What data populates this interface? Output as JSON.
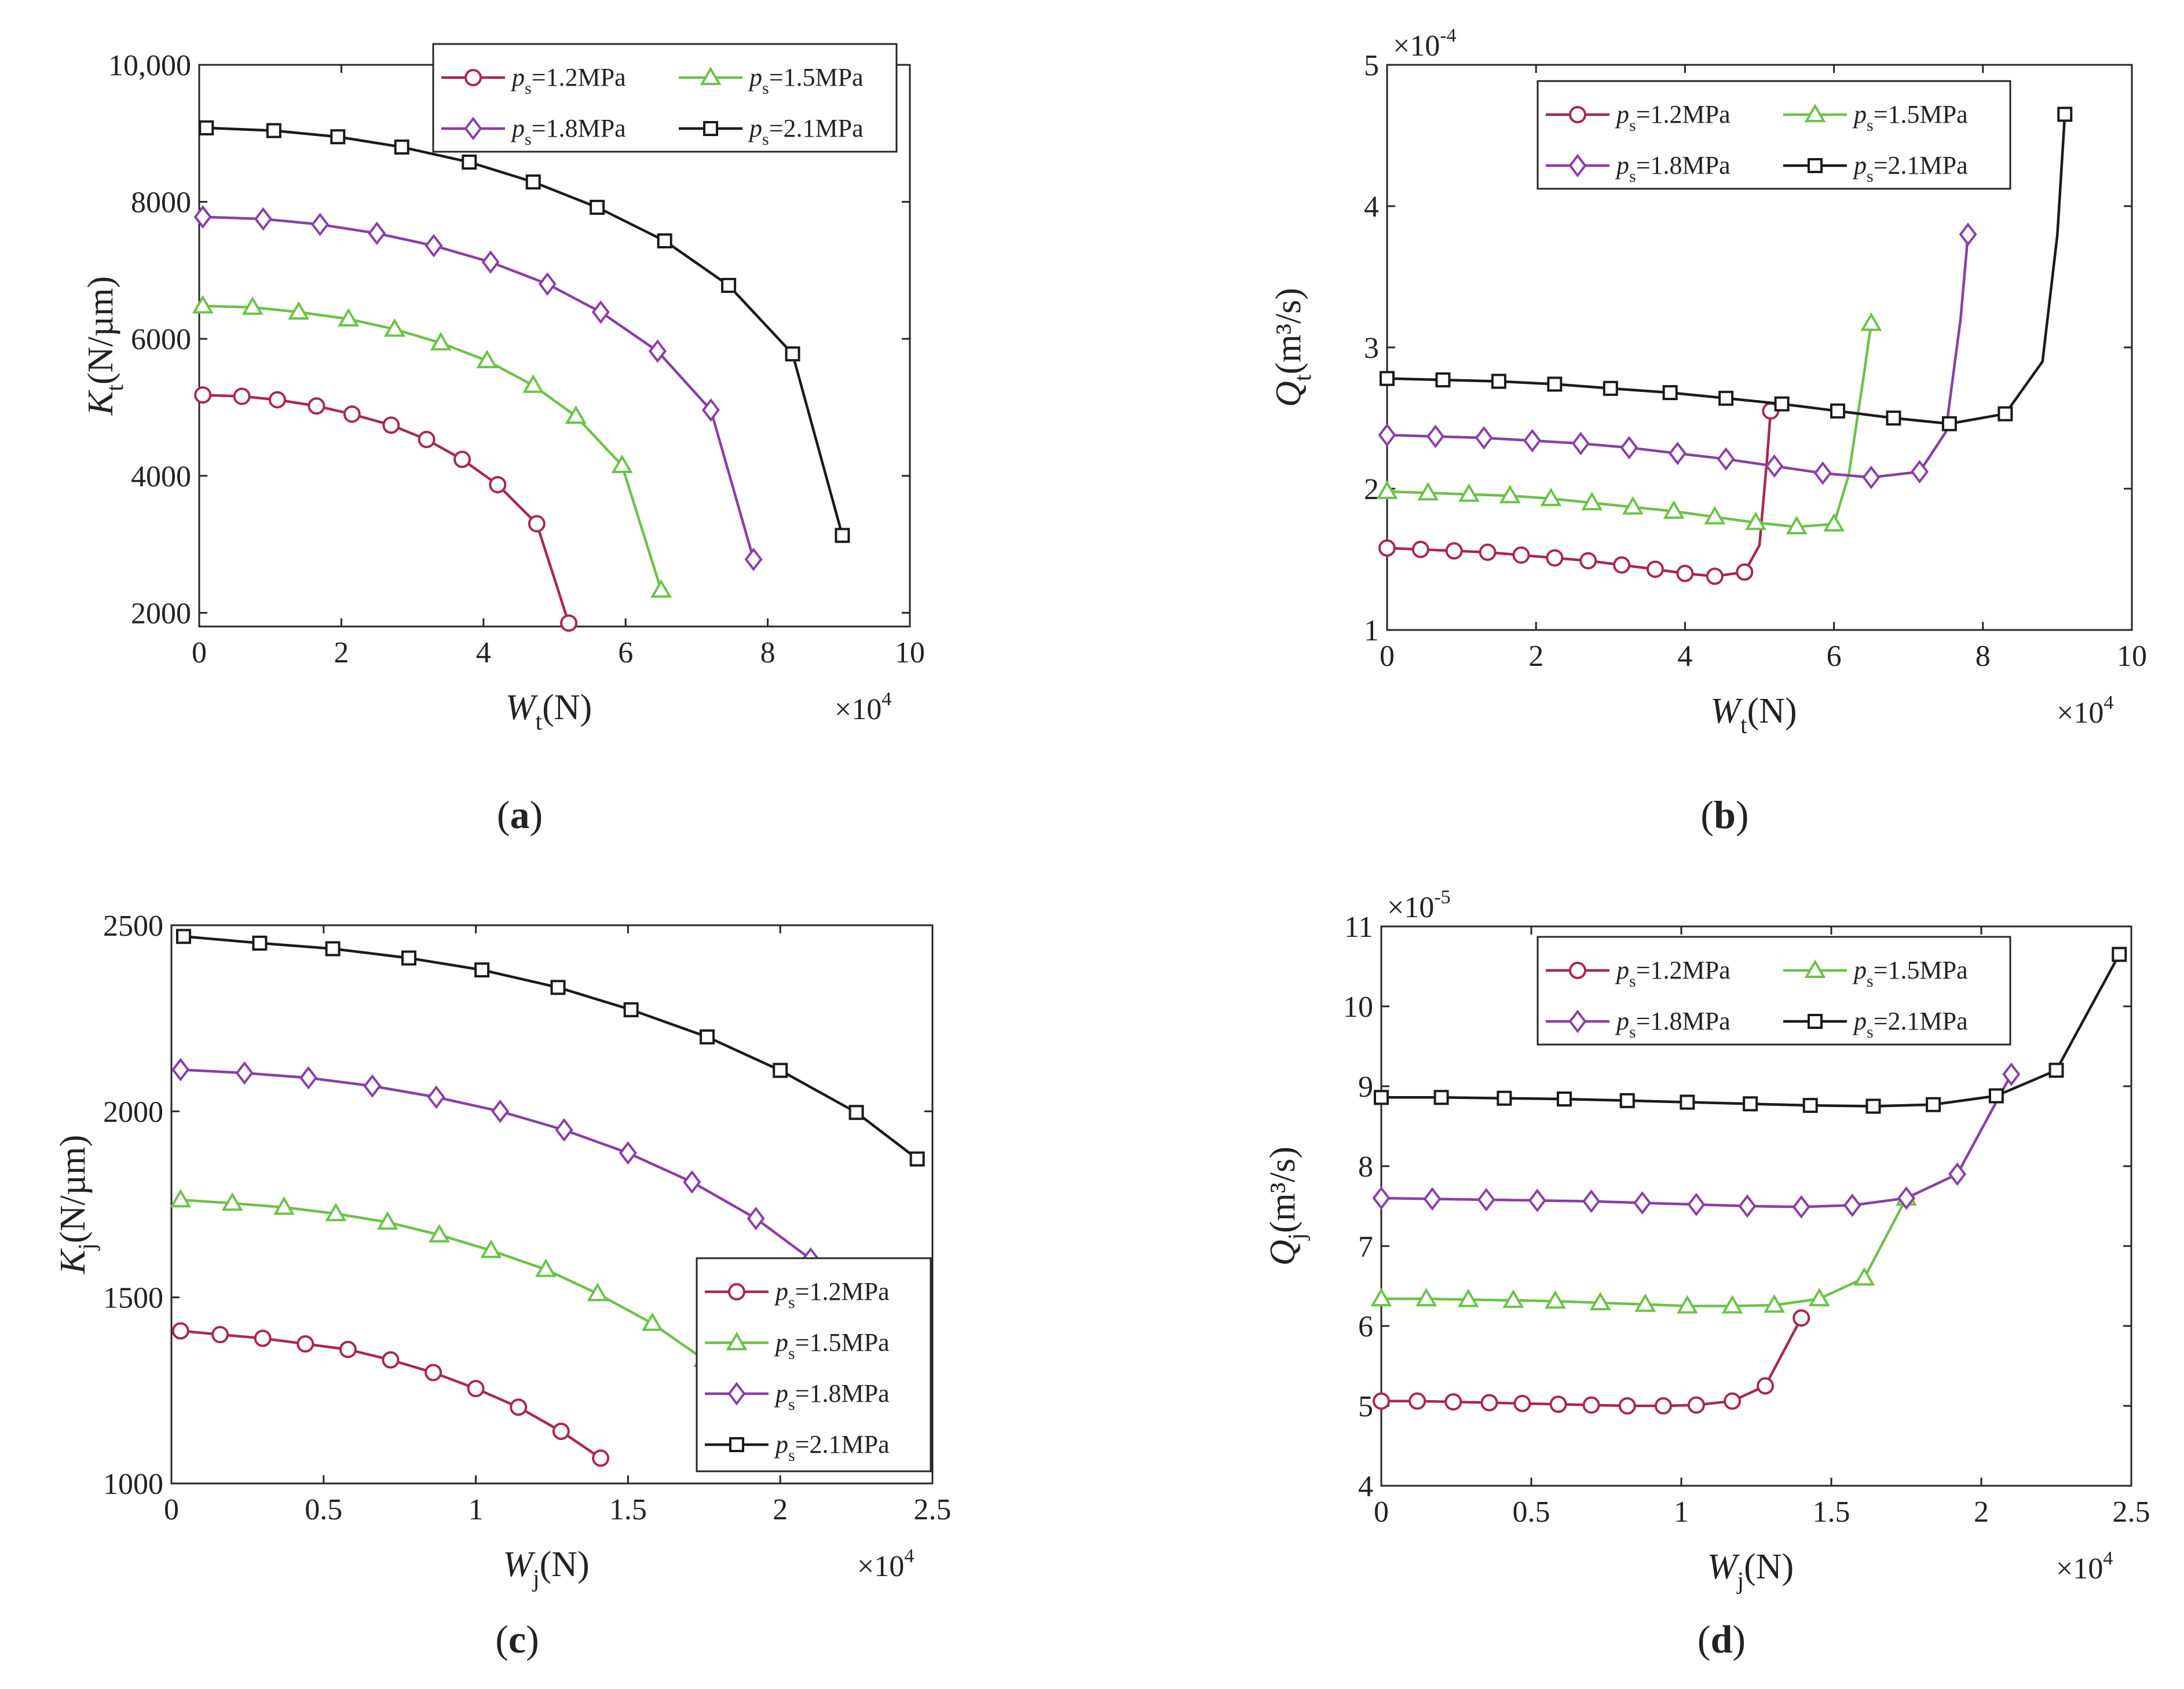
{
  "figure": {
    "series_colors": {
      "1.2": "#a8294a",
      "1.5": "#6cc24a",
      "1.8": "#8a3ea7",
      "2.1": "#1a1a1a"
    },
    "marker_shapes": {
      "1.2": "circle",
      "1.5": "triangle",
      "1.8": "diamond",
      "2.1": "square"
    }
  },
  "chart_data": [
    {
      "id": "a",
      "panel_label": "a",
      "type": "line",
      "xlabel_main": "W",
      "xlabel_sub": "t",
      "xlabel_unit": "(N)",
      "ylabel_main": "K",
      "ylabel_sub": "t",
      "ylabel_unit": "(N/µm)",
      "xlim": [
        0,
        10
      ],
      "ylim": [
        1800,
        10000
      ],
      "xticks": [
        0,
        2,
        4,
        6,
        8,
        10
      ],
      "yticks": [
        2000,
        4000,
        6000,
        8000,
        10000
      ],
      "ytick_labels": [
        "2000",
        "4000",
        "6000",
        "8000",
        "10,000"
      ],
      "x_multiplier": {
        "base": "×10",
        "exp": "4"
      },
      "legend": {
        "placement": "top-right",
        "columns": 2
      },
      "series": [
        {
          "name": "ps=1.2MPa",
          "p_label": "p",
          "p_sub": "s",
          "p_val": "=1.2MPa",
          "key": "1.2",
          "x": [
            0.05,
            0.6,
            1.1,
            1.65,
            2.15,
            2.7,
            3.2,
            3.7,
            4.2,
            4.75,
            5.2
          ],
          "y": [
            5180,
            5160,
            5110,
            5020,
            4900,
            4740,
            4530,
            4240,
            3870,
            3300,
            1850
          ]
        },
        {
          "name": "ps=1.5MPa",
          "p_label": "p",
          "p_sub": "s",
          "p_val": "=1.5MPa",
          "key": "1.5",
          "x": [
            0.05,
            0.75,
            1.4,
            2.1,
            2.75,
            3.4,
            4.05,
            4.7,
            5.3,
            5.95,
            6.5
          ],
          "y": [
            6480,
            6460,
            6390,
            6290,
            6140,
            5940,
            5680,
            5320,
            4870,
            4150,
            2330
          ]
        },
        {
          "name": "ps=1.8MPa",
          "p_label": "p",
          "p_sub": "s",
          "p_val": "=1.8MPa",
          "key": "1.8",
          "x": [
            0.05,
            0.9,
            1.7,
            2.5,
            3.3,
            4.1,
            4.9,
            5.65,
            6.45,
            7.2,
            7.8
          ],
          "y": [
            7780,
            7750,
            7670,
            7540,
            7360,
            7120,
            6800,
            6390,
            5820,
            4960,
            2780
          ]
        },
        {
          "name": "ps=2.1MPa",
          "p_label": "p",
          "p_sub": "s",
          "p_val": "=2.1MPa",
          "key": "2.1",
          "x": [
            0.1,
            1.05,
            1.95,
            2.85,
            3.8,
            4.7,
            5.6,
            6.55,
            7.45,
            8.35,
            9.05
          ],
          "y": [
            9080,
            9040,
            8950,
            8800,
            8580,
            8290,
            7920,
            7430,
            6780,
            5780,
            3130
          ]
        }
      ]
    },
    {
      "id": "b",
      "panel_label": "b",
      "type": "line",
      "xlabel_main": "W",
      "xlabel_sub": "t",
      "xlabel_unit": "(N)",
      "ylabel_main": "Q",
      "ylabel_sub": "t",
      "ylabel_unit": "(m³/s)",
      "xlim": [
        0,
        10
      ],
      "ylim": [
        1,
        5
      ],
      "xticks": [
        0,
        2,
        4,
        6,
        8,
        10
      ],
      "yticks": [
        1,
        2,
        3,
        4,
        5
      ],
      "ytick_labels": [
        "1",
        "2",
        "3",
        "4",
        "5"
      ],
      "x_multiplier": {
        "base": "×10",
        "exp": "4"
      },
      "y_multiplier": {
        "base": "×10",
        "exp": "-4"
      },
      "legend": {
        "placement": "top-right",
        "columns": 2
      },
      "series": [
        {
          "name": "ps=1.2MPa",
          "p_label": "p",
          "p_sub": "s",
          "p_val": "=1.2MPa",
          "key": "1.2",
          "x": [
            0,
            0.45,
            0.9,
            1.35,
            1.8,
            2.25,
            2.7,
            3.15,
            3.6,
            4.0,
            4.4,
            4.8,
            5.0,
            5.1,
            5.15
          ],
          "y": [
            1.58,
            1.57,
            1.56,
            1.55,
            1.53,
            1.51,
            1.49,
            1.46,
            1.43,
            1.4,
            1.38,
            1.41,
            1.6,
            2.2,
            2.55
          ],
          "marker_idx": [
            0,
            1,
            2,
            3,
            4,
            5,
            6,
            7,
            8,
            9,
            10,
            11,
            14
          ]
        },
        {
          "name": "ps=1.5MPa",
          "p_label": "p",
          "p_sub": "s",
          "p_val": "=1.5MPa",
          "key": "1.5",
          "x": [
            0,
            0.55,
            1.1,
            1.65,
            2.2,
            2.75,
            3.3,
            3.85,
            4.4,
            4.95,
            5.5,
            6.0,
            6.2,
            6.4,
            6.5
          ],
          "y": [
            1.98,
            1.97,
            1.96,
            1.95,
            1.93,
            1.9,
            1.87,
            1.84,
            1.8,
            1.76,
            1.73,
            1.75,
            2.1,
            2.8,
            3.17
          ],
          "marker_idx": [
            0,
            1,
            2,
            3,
            4,
            5,
            6,
            7,
            8,
            9,
            10,
            11,
            14
          ]
        },
        {
          "name": "ps=1.8MPa",
          "p_label": "p",
          "p_sub": "s",
          "p_val": "=1.8MPa",
          "key": "1.8",
          "x": [
            0,
            0.65,
            1.3,
            1.95,
            2.6,
            3.25,
            3.9,
            4.55,
            5.2,
            5.85,
            6.5,
            7.15,
            7.5,
            7.7,
            7.8
          ],
          "y": [
            2.38,
            2.37,
            2.36,
            2.34,
            2.32,
            2.29,
            2.25,
            2.21,
            2.16,
            2.11,
            2.08,
            2.12,
            2.4,
            3.2,
            3.8
          ],
          "marker_idx": [
            0,
            1,
            2,
            3,
            4,
            5,
            6,
            7,
            8,
            9,
            10,
            11,
            14
          ]
        },
        {
          "name": "ps=2.1MPa",
          "p_label": "p",
          "p_sub": "s",
          "p_val": "=2.1MPa",
          "key": "2.1",
          "x": [
            0,
            0.75,
            1.5,
            2.25,
            3.0,
            3.8,
            4.55,
            5.3,
            6.05,
            6.8,
            7.55,
            8.3,
            8.8,
            9.0,
            9.1
          ],
          "y": [
            2.78,
            2.77,
            2.76,
            2.74,
            2.71,
            2.68,
            2.64,
            2.6,
            2.55,
            2.5,
            2.46,
            2.53,
            2.9,
            3.8,
            4.65
          ],
          "marker_idx": [
            0,
            1,
            2,
            3,
            4,
            5,
            6,
            7,
            8,
            9,
            10,
            11,
            14
          ]
        }
      ]
    },
    {
      "id": "c",
      "panel_label": "c",
      "type": "line",
      "xlabel_main": "W",
      "xlabel_sub": "j",
      "xlabel_unit": "(N)",
      "ylabel_main": "K",
      "ylabel_sub": "j",
      "ylabel_unit": "(N/µm)",
      "xlim": [
        0,
        2.5
      ],
      "ylim": [
        1000,
        2500
      ],
      "xticks": [
        0,
        0.5,
        1,
        1.5,
        2,
        2.5
      ],
      "yticks": [
        1000,
        1500,
        2000,
        2500
      ],
      "ytick_labels": [
        "1000",
        "1500",
        "2000",
        "2500"
      ],
      "x_multiplier": {
        "base": "×10",
        "exp": "4"
      },
      "legend": {
        "placement": "bottom-right",
        "columns": 1
      },
      "series": [
        {
          "name": "ps=1.2MPa",
          "p_label": "p",
          "p_sub": "s",
          "p_val": "=1.2MPa",
          "key": "1.2",
          "x": [
            0.03,
            0.16,
            0.3,
            0.44,
            0.58,
            0.72,
            0.86,
            1.0,
            1.14,
            1.28,
            1.41
          ],
          "y": [
            1410,
            1400,
            1390,
            1375,
            1360,
            1332,
            1298,
            1255,
            1205,
            1140,
            1068
          ]
        },
        {
          "name": "ps=1.5MPa",
          "p_label": "p",
          "p_sub": "s",
          "p_val": "=1.5MPa",
          "key": "1.5",
          "x": [
            0.03,
            0.2,
            0.37,
            0.54,
            0.71,
            0.88,
            1.05,
            1.23,
            1.4,
            1.58,
            1.75
          ],
          "y": [
            1762,
            1753,
            1742,
            1725,
            1702,
            1668,
            1626,
            1575,
            1510,
            1430,
            1333
          ]
        },
        {
          "name": "ps=1.8MPa",
          "p_label": "p",
          "p_sub": "s",
          "p_val": "=1.8MPa",
          "key": "1.8",
          "x": [
            0.03,
            0.24,
            0.45,
            0.66,
            0.87,
            1.08,
            1.29,
            1.5,
            1.71,
            1.92,
            2.1
          ],
          "y": [
            2112,
            2103,
            2090,
            2068,
            2038,
            2000,
            1950,
            1888,
            1810,
            1712,
            1603
          ]
        },
        {
          "name": "ps=2.1MPa",
          "p_label": "p",
          "p_sub": "s",
          "p_val": "=2.1MPa",
          "key": "2.1",
          "x": [
            0.04,
            0.29,
            0.53,
            0.78,
            1.02,
            1.27,
            1.51,
            1.76,
            2.0,
            2.25,
            2.45
          ],
          "y": [
            2470,
            2452,
            2437,
            2412,
            2380,
            2333,
            2273,
            2200,
            2110,
            1997,
            1872
          ]
        }
      ]
    },
    {
      "id": "d",
      "panel_label": "d",
      "type": "line",
      "xlabel_main": "W",
      "xlabel_sub": "j",
      "xlabel_unit": "(N)",
      "ylabel_main": "Q",
      "ylabel_sub": "j",
      "ylabel_unit": "(m³/s)",
      "xlim": [
        0,
        2.5
      ],
      "ylim": [
        4,
        11
      ],
      "xticks": [
        0,
        0.5,
        1,
        1.5,
        2,
        2.5
      ],
      "yticks": [
        4,
        5,
        6,
        7,
        8,
        9,
        10,
        11
      ],
      "ytick_labels": [
        "4",
        "5",
        "6",
        "7",
        "8",
        "9",
        "10",
        "11"
      ],
      "x_multiplier": {
        "base": "×10",
        "exp": "4"
      },
      "y_multiplier": {
        "base": "×10",
        "exp": "-5"
      },
      "legend": {
        "placement": "top-right",
        "columns": 2
      },
      "series": [
        {
          "name": "ps=1.2MPa",
          "p_label": "p",
          "p_sub": "s",
          "p_val": "=1.2MPa",
          "key": "1.2",
          "x": [
            0,
            0.12,
            0.24,
            0.36,
            0.47,
            0.59,
            0.7,
            0.82,
            0.94,
            1.05,
            1.17,
            1.28,
            1.4
          ],
          "y": [
            5.06,
            5.06,
            5.05,
            5.04,
            5.03,
            5.02,
            5.01,
            5.0,
            5.0,
            5.01,
            5.06,
            5.25,
            6.1
          ]
        },
        {
          "name": "ps=1.5MPa",
          "p_label": "p",
          "p_sub": "s",
          "p_val": "=1.5MPa",
          "key": "1.5",
          "x": [
            0,
            0.15,
            0.29,
            0.44,
            0.58,
            0.73,
            0.88,
            1.02,
            1.17,
            1.31,
            1.46,
            1.61,
            1.75
          ],
          "y": [
            6.34,
            6.34,
            6.33,
            6.32,
            6.31,
            6.29,
            6.27,
            6.25,
            6.25,
            6.26,
            6.34,
            6.6,
            7.6
          ]
        },
        {
          "name": "ps=1.8MPa",
          "p_label": "p",
          "p_sub": "s",
          "p_val": "=1.8MPa",
          "key": "1.8",
          "x": [
            0,
            0.17,
            0.35,
            0.52,
            0.7,
            0.87,
            1.05,
            1.22,
            1.4,
            1.57,
            1.75,
            1.92,
            2.1
          ],
          "y": [
            7.6,
            7.59,
            7.58,
            7.57,
            7.56,
            7.54,
            7.52,
            7.5,
            7.49,
            7.51,
            7.6,
            7.9,
            9.15
          ]
        },
        {
          "name": "ps=2.1MPa",
          "p_label": "p",
          "p_sub": "s",
          "p_val": "=2.1MPa",
          "key": "2.1",
          "x": [
            0,
            0.2,
            0.41,
            0.61,
            0.82,
            1.02,
            1.23,
            1.43,
            1.64,
            1.84,
            2.05,
            2.25,
            2.46
          ],
          "y": [
            8.86,
            8.86,
            8.85,
            8.84,
            8.82,
            8.8,
            8.78,
            8.76,
            8.75,
            8.77,
            8.88,
            9.2,
            10.65
          ]
        }
      ]
    }
  ]
}
